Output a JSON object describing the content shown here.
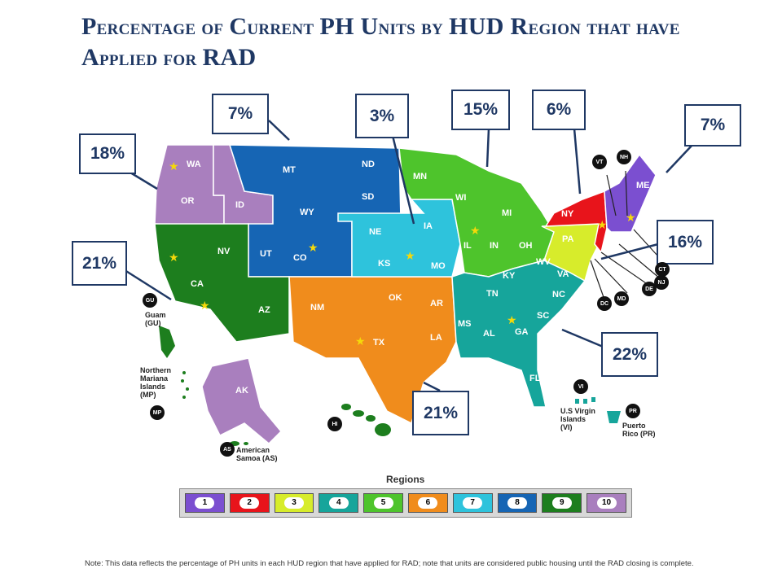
{
  "title": {
    "line1_a": "P",
    "line1_b": "ercentage of ",
    "line1_c": "C",
    "line1_d": "urrent ",
    "line1_e": "PH U",
    "line1_f": "nits by ",
    "line1_g": "HUD R",
    "line1_h": "egion that have",
    "line2_a": "A",
    "line2_b": "pplied for ",
    "line2_c": "RAD"
  },
  "callouts": [
    {
      "id": "r10",
      "label": "18%"
    },
    {
      "id": "r8a",
      "label": "7%"
    },
    {
      "id": "r7",
      "label": "3%"
    },
    {
      "id": "r5",
      "label": "15%"
    },
    {
      "id": "r2",
      "label": "6%"
    },
    {
      "id": "r1",
      "label": "7%"
    },
    {
      "id": "r9",
      "label": "21%"
    },
    {
      "id": "r3",
      "label": "16%"
    },
    {
      "id": "r4",
      "label": "22%"
    },
    {
      "id": "r6",
      "label": "21%"
    }
  ],
  "states": [
    "WA",
    "OR",
    "ID",
    "MT",
    "WY",
    "ND",
    "SD",
    "NE",
    "KS",
    "MN",
    "IA",
    "MO",
    "WI",
    "IL",
    "MI",
    "IN",
    "OH",
    "KY",
    "TN",
    "NY",
    "PA",
    "WV",
    "VA",
    "NC",
    "SC",
    "GA",
    "AL",
    "MS",
    "FL",
    "AR",
    "LA",
    "OK",
    "TX",
    "NM",
    "AZ",
    "UT",
    "CO",
    "NV",
    "CA",
    "ME",
    "AK",
    "HI"
  ],
  "northeast_tags": [
    "VT",
    "NH",
    "CT",
    "NJ",
    "DE",
    "MD",
    "DC"
  ],
  "territories": {
    "gu": "Guam (GU)",
    "gu_tag": "GU",
    "mp": "Northern Mariana Islands (MP)",
    "mp_tag": "MP",
    "as": "American Samoa (AS)",
    "as_tag": "AS",
    "hi_tag": "HI",
    "vi": "U.S Virgin Islands (VI)",
    "vi_tag": "VI",
    "pr": "Puerto Rico (PR)",
    "pr_tag": "PR"
  },
  "legend": {
    "title": "Regions",
    "items": [
      {
        "label": "1",
        "color": "#7b4fd0"
      },
      {
        "label": "2",
        "color": "#e8141b"
      },
      {
        "label": "3",
        "color": "#d7ec2b"
      },
      {
        "label": "4",
        "color": "#16a59b"
      },
      {
        "label": "5",
        "color": "#4ec42c"
      },
      {
        "label": "6",
        "color": "#f08c1c"
      },
      {
        "label": "7",
        "color": "#2ec3dc"
      },
      {
        "label": "8",
        "color": "#1665b4"
      },
      {
        "label": "9",
        "color": "#1d7e1e"
      },
      {
        "label": "10",
        "color": "#a97fbe"
      }
    ]
  },
  "note": "Note: This data reflects the percentage of PH units in each HUD region that have applied for RAD; note that units are considered public housing until the RAD closing is complete."
}
